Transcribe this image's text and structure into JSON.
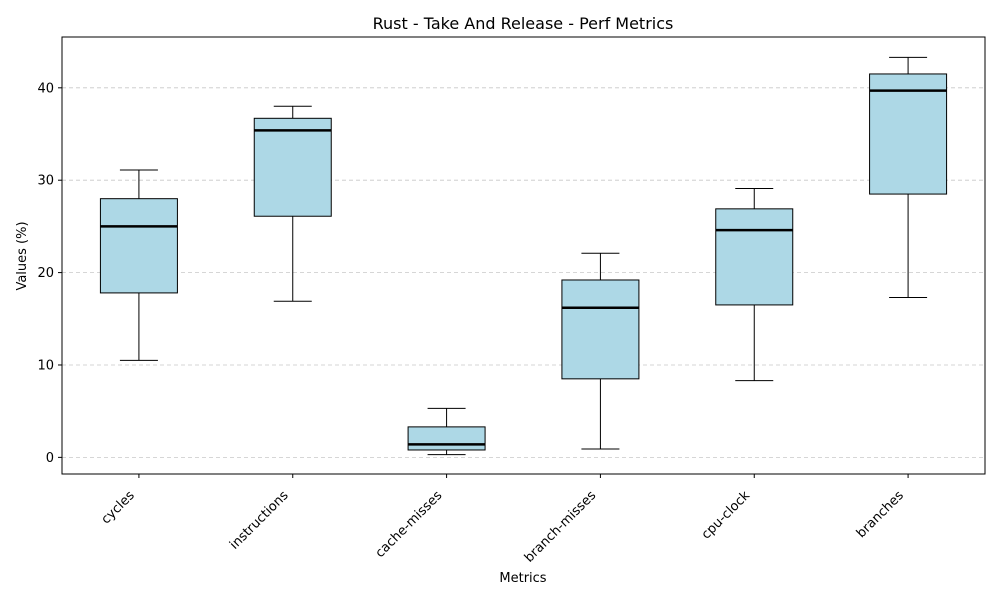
{
  "chart_data": {
    "type": "box",
    "title": "Rust - Take And Release - Perf Metrics",
    "xlabel": "Metrics",
    "ylabel": "Values (%)",
    "ylim": [
      -1.8,
      45.5
    ],
    "yticks": [
      0,
      10,
      20,
      30,
      40
    ],
    "grid": "y-dashed",
    "box_color": "#add8e6",
    "median_color": "#000000",
    "categories": [
      "cycles",
      "instructions",
      "cache-misses",
      "branch-misses",
      "cpu-clock",
      "branches"
    ],
    "boxes": [
      {
        "label": "cycles",
        "whisker_low": 10.5,
        "q1": 17.8,
        "median": 25.0,
        "q3": 28.0,
        "whisker_high": 31.1
      },
      {
        "label": "instructions",
        "whisker_low": 16.9,
        "q1": 26.1,
        "median": 35.4,
        "q3": 36.7,
        "whisker_high": 38.0
      },
      {
        "label": "cache-misses",
        "whisker_low": 0.3,
        "q1": 0.8,
        "median": 1.4,
        "q3": 3.3,
        "whisker_high": 5.3
      },
      {
        "label": "branch-misses",
        "whisker_low": 0.9,
        "q1": 8.5,
        "median": 16.2,
        "q3": 19.2,
        "whisker_high": 22.1
      },
      {
        "label": "cpu-clock",
        "whisker_low": 8.3,
        "q1": 16.5,
        "median": 24.6,
        "q3": 26.9,
        "whisker_high": 29.1
      },
      {
        "label": "branches",
        "whisker_low": 17.3,
        "q1": 28.5,
        "median": 39.7,
        "q3": 41.5,
        "whisker_high": 43.3
      }
    ]
  }
}
